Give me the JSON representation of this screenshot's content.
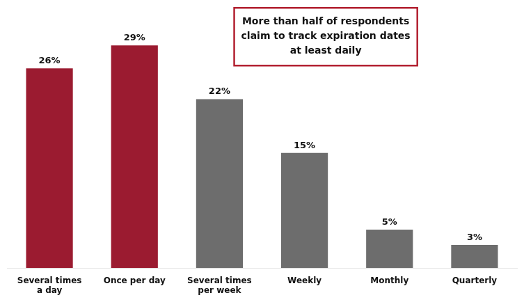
{
  "chart_data": {
    "type": "bar",
    "categories": [
      "Several times\na day",
      "Once per day",
      "Several times\nper week",
      "Weekly",
      "Monthly",
      "Quarterly"
    ],
    "values": [
      26,
      29,
      22,
      15,
      5,
      3
    ],
    "value_labels": [
      "26%",
      "29%",
      "22%",
      "15%",
      "5%",
      "3%"
    ],
    "colors": [
      "#9B1B30",
      "#9B1B30",
      "#6D6D6D",
      "#6D6D6D",
      "#6D6D6D",
      "#6D6D6D"
    ],
    "ylim": [
      0,
      34
    ],
    "grid": false,
    "data_labels": true,
    "tick_labels": "x",
    "annotation": {
      "text": "More than half of respondents\nclaim to track expiration dates\nat least daily",
      "color": "#B22030"
    }
  }
}
